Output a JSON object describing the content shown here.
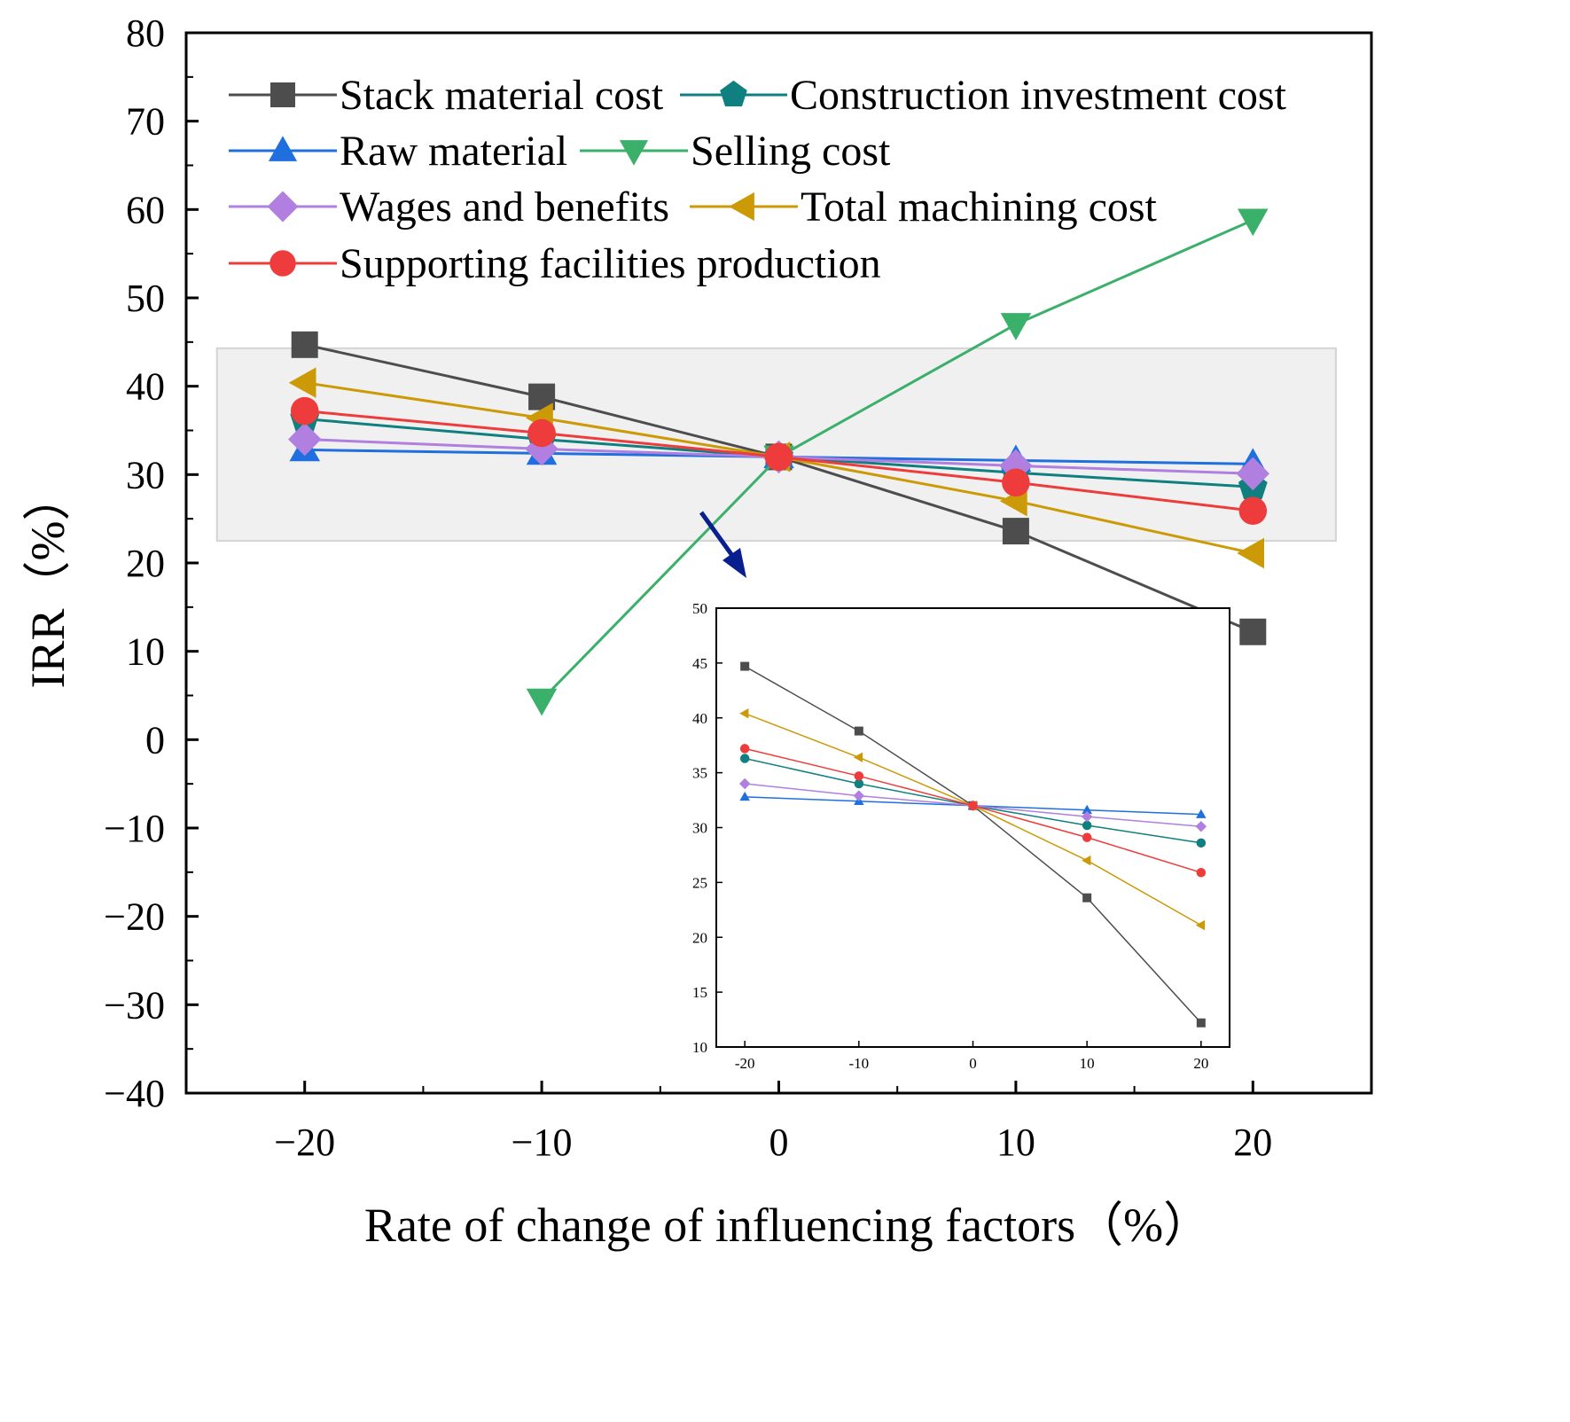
{
  "chart_data": [
    {
      "type": "line",
      "title": "",
      "xlabel": "Rate of change of influencing factors（%）",
      "ylabel": "IRR（%）",
      "xlim": [
        -25,
        25
      ],
      "ylim": [
        -40,
        80
      ],
      "x_ticks": [
        -20,
        -10,
        0,
        10,
        20
      ],
      "y_ticks": [
        80,
        70,
        60,
        50,
        40,
        30,
        20,
        10,
        0,
        -10,
        -20,
        -30,
        -40
      ],
      "x_tick_labels": [
        "−20",
        "−10",
        "0",
        "10",
        "20"
      ],
      "y_tick_labels": [
        "80",
        "70",
        "60",
        "50",
        "40",
        "30",
        "20",
        "10",
        "0",
        "−10",
        "−20",
        "−30",
        "−40"
      ],
      "legend_position": "top-left",
      "grid": false,
      "series": [
        {
          "name": "Stack material cost",
          "color": "#4d4d4d",
          "marker": "square",
          "x": [
            -20,
            -10,
            0,
            10,
            20
          ],
          "values": [
            44.7,
            38.8,
            32.0,
            23.6,
            12.2
          ]
        },
        {
          "name": "Construction investment cost",
          "color": "#0f7f7f",
          "marker": "pentagon",
          "x": [
            -20,
            -10,
            0,
            10,
            20
          ],
          "values": [
            36.3,
            34.0,
            32.0,
            30.2,
            28.6
          ]
        },
        {
          "name": "Raw material",
          "color": "#1f6fde",
          "marker": "triangle-up",
          "x": [
            -20,
            -10,
            0,
            10,
            20
          ],
          "values": [
            32.8,
            32.4,
            32.0,
            31.6,
            31.2
          ]
        },
        {
          "name": "Selling cost",
          "color": "#3ab06a",
          "marker": "triangle-down",
          "x": [
            -10,
            0,
            10,
            20
          ],
          "values": [
            4.5,
            32.0,
            47.0,
            58.8
          ]
        },
        {
          "name": "Wages and benefits",
          "color": "#b07fe0",
          "marker": "diamond",
          "x": [
            -20,
            -10,
            0,
            10,
            20
          ],
          "values": [
            34.0,
            32.9,
            32.0,
            31.0,
            30.1
          ]
        },
        {
          "name": "Total machining cost",
          "color": "#cc9a06",
          "marker": "triangle-left",
          "x": [
            -20,
            -10,
            0,
            10,
            20
          ],
          "values": [
            40.4,
            36.4,
            32.0,
            27.0,
            21.1
          ]
        },
        {
          "name": "Supporting facilities production",
          "color": "#ee3b3b",
          "marker": "circle",
          "x": [
            -20,
            -10,
            0,
            10,
            20
          ],
          "values": [
            37.2,
            34.7,
            32.0,
            29.1,
            25.9
          ]
        }
      ]
    },
    {
      "type": "line",
      "title": "",
      "xlabel": "",
      "ylabel": "",
      "xlim": [
        -22.5,
        22.5
      ],
      "ylim": [
        10,
        50
      ],
      "x_ticks": [
        -20,
        -10,
        0,
        10,
        20
      ],
      "y_ticks": [
        50,
        45,
        40,
        35,
        30,
        25,
        20,
        15,
        10
      ],
      "x_tick_labels": [
        "-20",
        "-10",
        "0",
        "10",
        "20"
      ],
      "y_tick_labels": [
        "50",
        "45",
        "40",
        "35",
        "30",
        "25",
        "20",
        "15",
        "10"
      ],
      "legend_position": "none",
      "grid": false,
      "series": [
        {
          "name": "Stack material cost",
          "color": "#4d4d4d",
          "marker": "square",
          "x": [
            -20,
            -10,
            0,
            10,
            20
          ],
          "values": [
            44.7,
            38.8,
            32.0,
            23.6,
            12.2
          ]
        },
        {
          "name": "Construction investment cost",
          "color": "#0f7f7f",
          "marker": "circle",
          "x": [
            -20,
            -10,
            0,
            10,
            20
          ],
          "values": [
            36.3,
            34.0,
            32.0,
            30.2,
            28.6
          ]
        },
        {
          "name": "Raw material",
          "color": "#1f6fde",
          "marker": "triangle-up",
          "x": [
            -20,
            -10,
            0,
            10,
            20
          ],
          "values": [
            32.8,
            32.4,
            32.0,
            31.6,
            31.2
          ]
        },
        {
          "name": "Wages and benefits",
          "color": "#b07fe0",
          "marker": "diamond",
          "x": [
            -20,
            -10,
            0,
            10,
            20
          ],
          "values": [
            34.0,
            32.9,
            32.0,
            31.0,
            30.1
          ]
        },
        {
          "name": "Total machining cost",
          "color": "#cc9a06",
          "marker": "triangle-left",
          "x": [
            -20,
            -10,
            0,
            10,
            20
          ],
          "values": [
            40.4,
            36.4,
            32.0,
            27.0,
            21.1
          ]
        },
        {
          "name": "Supporting facilities production",
          "color": "#ee3b3b",
          "marker": "circle",
          "x": [
            -20,
            -10,
            0,
            10,
            20
          ],
          "values": [
            37.2,
            34.7,
            32.0,
            29.1,
            25.9
          ]
        }
      ]
    }
  ],
  "highlight_band": {
    "y_range": [
      22.5,
      44.3
    ],
    "x_range": [
      -23.7,
      23.5
    ],
    "color": "#f0f0f0"
  },
  "arrow_color": "#0a1f8f"
}
